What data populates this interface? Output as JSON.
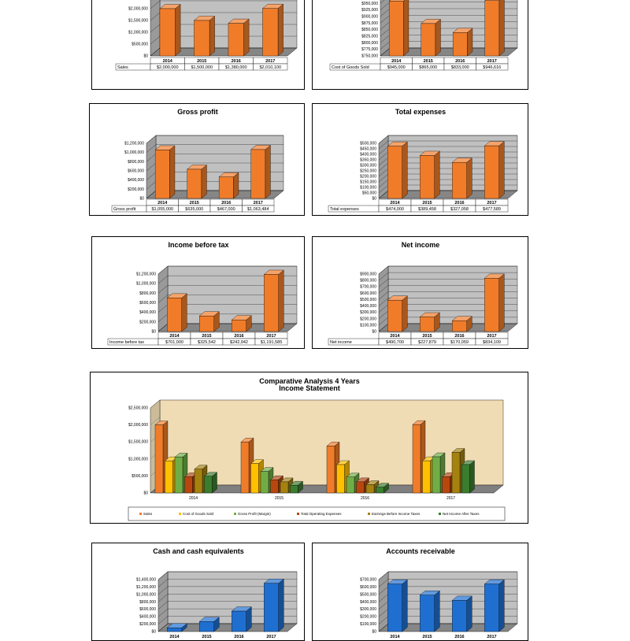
{
  "colors": {
    "orange": "#f07c2a",
    "blue": "#1f6fd1",
    "wall": "#c0c0c0",
    "combo_wall": "#f0dcb4",
    "series": [
      "#f07c2a",
      "#ffc000",
      "#70ad47",
      "#b8470f",
      "#a5820f",
      "#3a7d2e"
    ]
  },
  "charts": [
    {
      "id": "sales",
      "title": "",
      "row_label": "Sales",
      "color": "orange",
      "categories": [
        "2014",
        "2015",
        "2016",
        "2017"
      ],
      "values": [
        2000000,
        1500000,
        1380000,
        2010100
      ],
      "labels": [
        "$2,000,000",
        "$1,500,000",
        "$1,380,000",
        "$2,010,100"
      ],
      "ticks": [
        "$0",
        "$500,000",
        "$1,000,000",
        "$1,500,000",
        "$2,000,000",
        "$2,500,000"
      ],
      "ymin": 0,
      "ymax": 2500000
    },
    {
      "id": "cogs",
      "title": "",
      "row_label": "Cost of Goods Sold",
      "color": "orange",
      "categories": [
        "2014",
        "2015",
        "2016",
        "2017"
      ],
      "values": [
        945000,
        865000,
        833000,
        946616
      ],
      "labels": [
        "$945,000",
        "$865,000",
        "$833,000",
        "$946,616"
      ],
      "ticks": [
        "$750,000",
        "$775,000",
        "$800,000",
        "$825,000",
        "$850,000",
        "$875,000",
        "$900,000",
        "$925,000",
        "$950,000",
        "$960,000"
      ],
      "ymin": 750000,
      "ymax": 960000
    },
    {
      "id": "gross",
      "title": "Gross profit",
      "row_label": "Gross profit",
      "color": "orange",
      "categories": [
        "2014",
        "2015",
        "2016",
        "2017"
      ],
      "values": [
        1055000,
        635000,
        467000,
        1063484
      ],
      "labels": [
        "$1,055,000",
        "$635,000",
        "$467,000",
        "$1,063,484"
      ],
      "ticks": [
        "$0",
        "$200,000",
        "$400,000",
        "$600,000",
        "$800,000",
        "$1,000,000",
        "$1,200,000"
      ],
      "ymin": 0,
      "ymax": 1200000
    },
    {
      "id": "texp",
      "title": "Total expenses",
      "row_label": "Total expenses",
      "color": "orange",
      "categories": [
        "2014",
        "2015",
        "2016",
        "2017"
      ],
      "values": [
        474000,
        389458,
        327058,
        477589
      ],
      "labels": [
        "$474,000",
        "$389,458",
        "$327,058",
        "$477,589"
      ],
      "ticks": [
        "$0",
        "$50,000",
        "$100,000",
        "$150,000",
        "$200,000",
        "$250,000",
        "$300,000",
        "$350,000",
        "$400,000",
        "$450,000",
        "$500,000"
      ],
      "ymin": 0,
      "ymax": 500000
    },
    {
      "id": "ibt",
      "title": "Income before tax",
      "row_label": "Income before tax",
      "color": "orange",
      "categories": [
        "2014",
        "2015",
        "2016",
        "2017"
      ],
      "values": [
        701000,
        325542,
        242942,
        1191585
      ],
      "labels": [
        "$701,000",
        "$325,542",
        "$242,942",
        "$1,191,585"
      ],
      "ticks": [
        "$0",
        "$200,000",
        "$400,000",
        "$600,000",
        "$800,000",
        "$1,000,000",
        "$1,200,000"
      ],
      "ymin": 0,
      "ymax": 1200000
    },
    {
      "id": "net",
      "title": "Net income",
      "row_label": "Net income",
      "color": "orange",
      "categories": [
        "2014",
        "2015",
        "2016",
        "2017"
      ],
      "values": [
        490700,
        227879,
        170059,
        834109
      ],
      "labels": [
        "$490,700",
        "$227,879",
        "$170,059",
        "$834,109"
      ],
      "ticks": [
        "$0",
        "$100,000",
        "$200,000",
        "$300,000",
        "$400,000",
        "$500,000",
        "$600,000",
        "$700,000",
        "$800,000",
        "$900,000"
      ],
      "ymin": 0,
      "ymax": 900000
    },
    {
      "id": "cash",
      "title": "Cash and cash equivalents",
      "row_label": "",
      "color": "blue",
      "categories": [
        "2014",
        "2015",
        "2016",
        "2017"
      ],
      "values": [
        100000,
        270000,
        550000,
        1300000
      ],
      "labels": [],
      "ticks": [
        "$0",
        "$200,000",
        "$400,000",
        "$600,000",
        "$800,000",
        "$1,000,000",
        "$1,200,000",
        "$1,400,000"
      ],
      "ymin": 0,
      "ymax": 1400000
    },
    {
      "id": "ar",
      "title": "Accounts receivable",
      "row_label": "",
      "color": "blue",
      "categories": [
        "2014",
        "2015",
        "2016",
        "2017"
      ],
      "values": [
        640000,
        490000,
        420000,
        640000
      ],
      "labels": [],
      "ticks": [
        "$0",
        "$100,000",
        "$200,000",
        "$300,000",
        "$400,000",
        "$500,000",
        "$600,000",
        "$700,000"
      ],
      "ymin": 0,
      "ymax": 700000
    }
  ],
  "combo": {
    "title_line1": "Comparative Analysis 4 Years",
    "title_line2": "Income Statement",
    "categories": [
      "2014",
      "2015",
      "2016",
      "2017"
    ],
    "ticks": [
      "$0",
      "$500,000",
      "$1,000,000",
      "$1,500,000",
      "$2,000,000",
      "$2,500,000"
    ],
    "ymin": 0,
    "ymax": 2500000,
    "series": [
      {
        "name": "Sales",
        "values": [
          2000000,
          1500000,
          1380000,
          2010100
        ]
      },
      {
        "name": "Cost of Goods Sold",
        "values": [
          945000,
          865000,
          833000,
          946616
        ]
      },
      {
        "name": "Gross Profit (Margin)",
        "values": [
          1055000,
          635000,
          467000,
          1063484
        ]
      },
      {
        "name": "Total Operating Expenses",
        "values": [
          474000,
          389458,
          327058,
          477589
        ]
      },
      {
        "name": "Earnings Before Income Taxes",
        "values": [
          701000,
          325542,
          242942,
          1191585
        ]
      },
      {
        "name": "Net Income After Taxes",
        "values": [
          490700,
          227879,
          170059,
          834109
        ]
      }
    ]
  },
  "chart_data": [
    {
      "type": "bar",
      "title": "",
      "categories": [
        "2014",
        "2015",
        "2016",
        "2017"
      ],
      "series": [
        {
          "name": "Sales",
          "values": [
            2000000,
            1500000,
            1380000,
            2010100
          ]
        }
      ],
      "ylim": [
        0,
        2500000
      ]
    },
    {
      "type": "bar",
      "title": "",
      "categories": [
        "2014",
        "2015",
        "2016",
        "2017"
      ],
      "series": [
        {
          "name": "Cost of Goods Sold",
          "values": [
            945000,
            865000,
            833000,
            946616
          ]
        }
      ],
      "ylim": [
        750000,
        960000
      ]
    },
    {
      "type": "bar",
      "title": "Gross profit",
      "categories": [
        "2014",
        "2015",
        "2016",
        "2017"
      ],
      "series": [
        {
          "name": "Gross profit",
          "values": [
            1055000,
            635000,
            467000,
            1063484
          ]
        }
      ],
      "ylim": [
        0,
        1200000
      ]
    },
    {
      "type": "bar",
      "title": "Total expenses",
      "categories": [
        "2014",
        "2015",
        "2016",
        "2017"
      ],
      "series": [
        {
          "name": "Total expenses",
          "values": [
            474000,
            389458,
            327058,
            477589
          ]
        }
      ],
      "ylim": [
        0,
        500000
      ]
    },
    {
      "type": "bar",
      "title": "Income before tax",
      "categories": [
        "2014",
        "2015",
        "2016",
        "2017"
      ],
      "series": [
        {
          "name": "Income before tax",
          "values": [
            701000,
            325542,
            242942,
            1191585
          ]
        }
      ],
      "ylim": [
        0,
        1200000
      ]
    },
    {
      "type": "bar",
      "title": "Net income",
      "categories": [
        "2014",
        "2015",
        "2016",
        "2017"
      ],
      "series": [
        {
          "name": "Net income",
          "values": [
            490700,
            227879,
            170059,
            834109
          ]
        }
      ],
      "ylim": [
        0,
        900000
      ]
    },
    {
      "type": "bar",
      "title": "Comparative Analysis 4 Years Income Statement",
      "categories": [
        "2014",
        "2015",
        "2016",
        "2017"
      ],
      "series": [
        {
          "name": "Sales",
          "values": [
            2000000,
            1500000,
            1380000,
            2010100
          ]
        },
        {
          "name": "Cost of Goods Sold",
          "values": [
            945000,
            865000,
            833000,
            946616
          ]
        },
        {
          "name": "Gross Profit (Margin)",
          "values": [
            1055000,
            635000,
            467000,
            1063484
          ]
        },
        {
          "name": "Total Operating Expenses",
          "values": [
            474000,
            389458,
            327058,
            477589
          ]
        },
        {
          "name": "Earnings Before Income Taxes",
          "values": [
            701000,
            325542,
            242942,
            1191585
          ]
        },
        {
          "name": "Net Income After Taxes",
          "values": [
            490700,
            227879,
            170059,
            834109
          ]
        }
      ],
      "ylim": [
        0,
        2500000
      ],
      "legend": "bottom"
    },
    {
      "type": "bar",
      "title": "Cash and cash equivalents",
      "categories": [
        "2014",
        "2015",
        "2016",
        "2017"
      ],
      "series": [
        {
          "values": [
            100000,
            270000,
            550000,
            1300000
          ]
        }
      ],
      "ylim": [
        0,
        1400000
      ]
    },
    {
      "type": "bar",
      "title": "Accounts receivable",
      "categories": [
        "2014",
        "2015",
        "2016",
        "2017"
      ],
      "series": [
        {
          "values": [
            640000,
            490000,
            420000,
            640000
          ]
        }
      ],
      "ylim": [
        0,
        700000
      ]
    }
  ]
}
